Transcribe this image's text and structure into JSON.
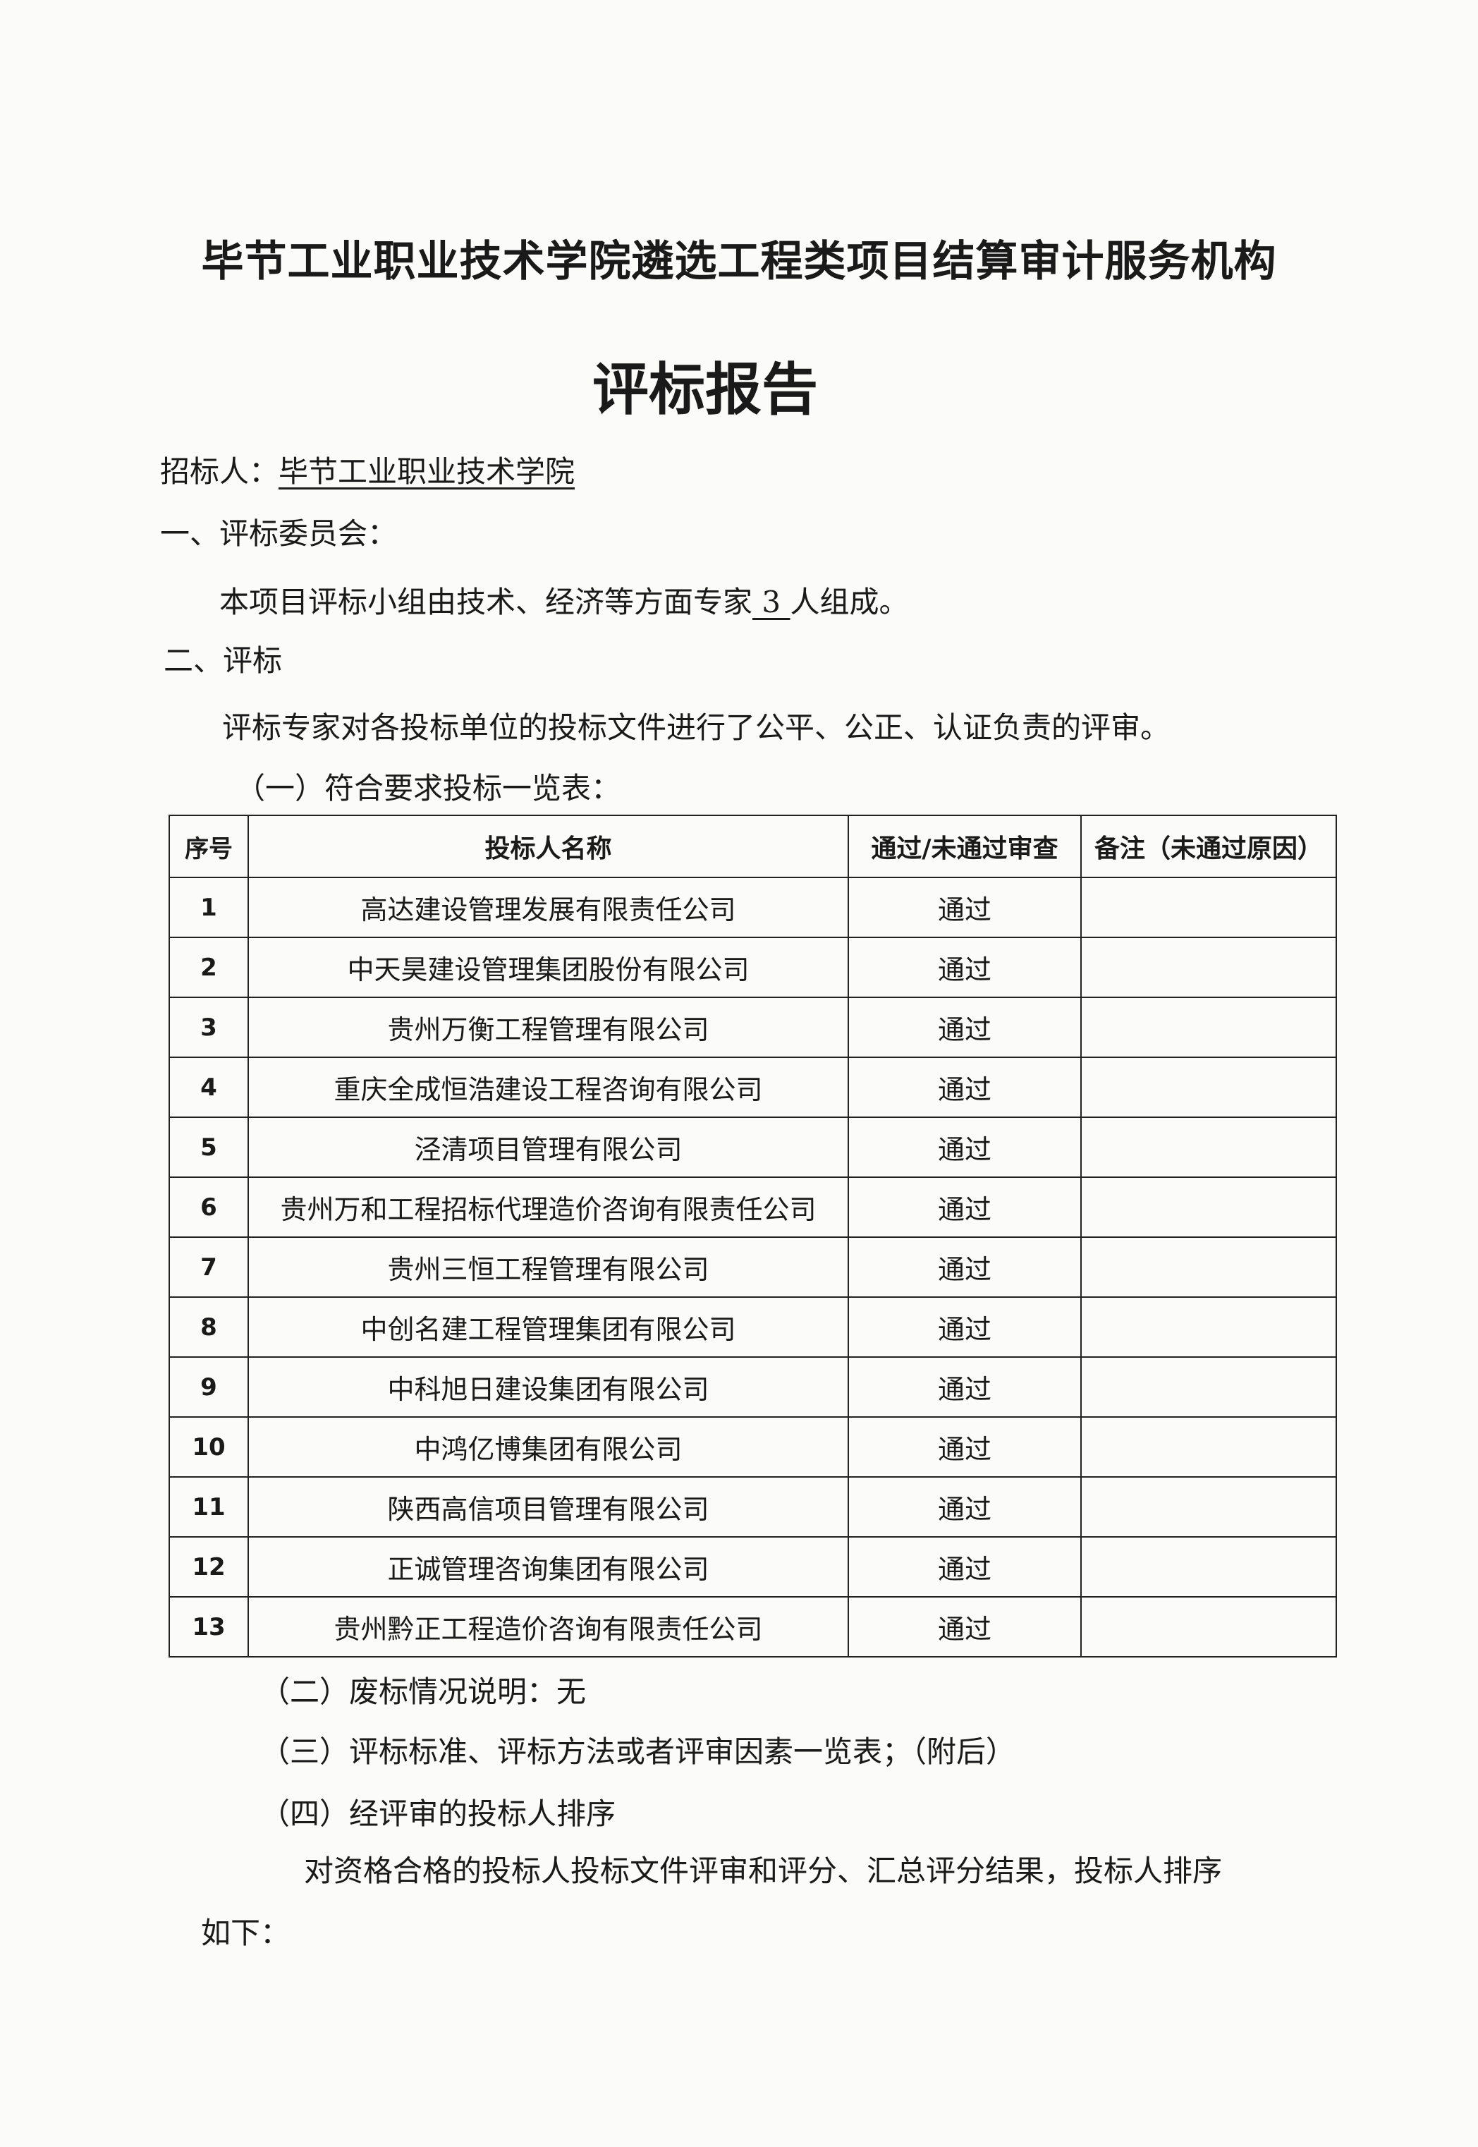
{
  "document": {
    "title": "毕节工业职业技术学院遴选工程类项目结算审计服务机构",
    "heading": "评标报告",
    "tenderer_label": "招标人：",
    "tenderer_name": "毕节工业职业技术学院",
    "section1": "一、评标委员会：",
    "section1_text_a": "本项目评标小组由技术、经济等方面专家",
    "section1_count": " 3 ",
    "section1_text_b": "人组成。",
    "section2": "二、评标",
    "section2_text": "评标专家对各投标单位的投标文件进行了公平、公正、认证负责的评审。",
    "sub1": "（一）符合要求投标一览表：",
    "table": {
      "headers": [
        "序号",
        "投标人名称",
        "通过/未通过审查",
        "备注（未通过原因）"
      ],
      "rows": [
        {
          "no": "1",
          "name": "高达建设管理发展有限责任公司",
          "result": "通过",
          "note": ""
        },
        {
          "no": "2",
          "name": "中天昊建设管理集团股份有限公司",
          "result": "通过",
          "note": ""
        },
        {
          "no": "3",
          "name": "贵州万衡工程管理有限公司",
          "result": "通过",
          "note": ""
        },
        {
          "no": "4",
          "name": "重庆全成恒浩建设工程咨询有限公司",
          "result": "通过",
          "note": ""
        },
        {
          "no": "5",
          "name": "泾清项目管理有限公司",
          "result": "通过",
          "note": ""
        },
        {
          "no": "6",
          "name": "贵州万和工程招标代理造价咨询有限责任公司",
          "result": "通过",
          "note": ""
        },
        {
          "no": "7",
          "name": "贵州三恒工程管理有限公司",
          "result": "通过",
          "note": ""
        },
        {
          "no": "8",
          "name": "中创名建工程管理集团有限公司",
          "result": "通过",
          "note": ""
        },
        {
          "no": "9",
          "name": "中科旭日建设集团有限公司",
          "result": "通过",
          "note": ""
        },
        {
          "no": "10",
          "name": "中鸿亿博集团有限公司",
          "result": "通过",
          "note": ""
        },
        {
          "no": "11",
          "name": "陕西高信项目管理有限公司",
          "result": "通过",
          "note": ""
        },
        {
          "no": "12",
          "name": "正诚管理咨询集团有限公司",
          "result": "通过",
          "note": ""
        },
        {
          "no": "13",
          "name": "贵州黔正工程造价咨询有限责任公司",
          "result": "通过",
          "note": ""
        }
      ]
    },
    "sub2": "（二）废标情况说明：无",
    "sub3": "（三）评标标准、评标方法或者评审因素一览表；（附后）",
    "sub4": "（四）经评审的投标人排序",
    "ranking_text": "对资格合格的投标人投标文件评审和评分、汇总评分结果，投标人排序",
    "ranking_text_cont": "如下："
  }
}
